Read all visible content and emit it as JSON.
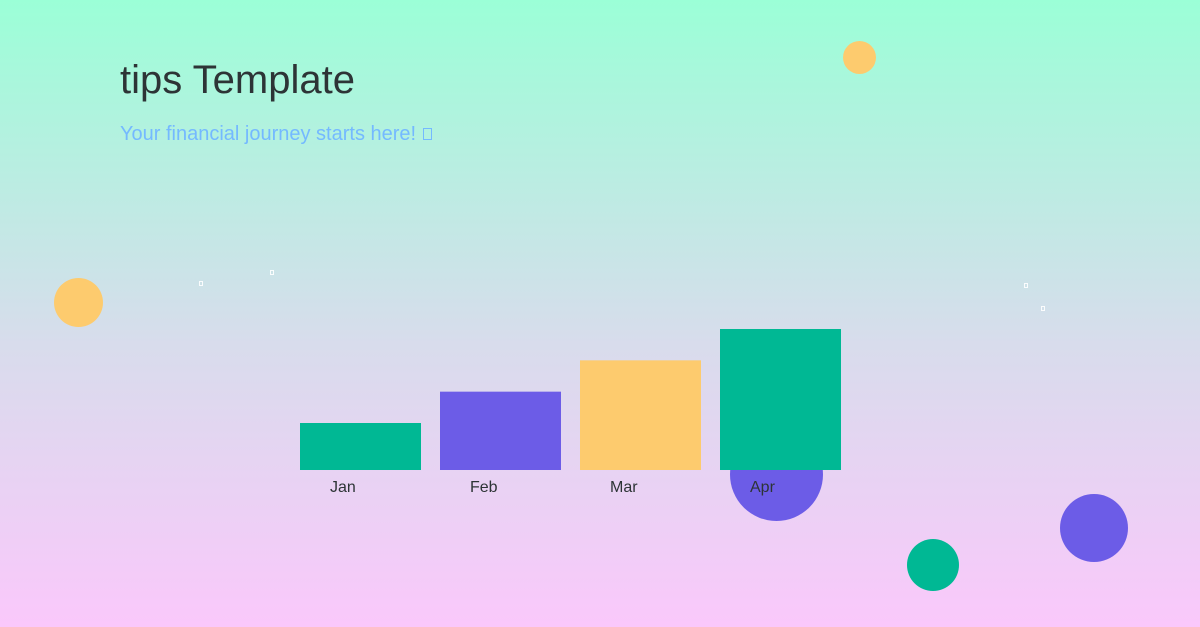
{
  "header": {
    "title": "tips Template",
    "subtitle": "Your financial journey starts here!"
  },
  "palette": {
    "teal": "#00b894",
    "purple": "#6c5ce7",
    "yellow": "#fdcb6e",
    "title_color": "#2d3436",
    "subtitle_color": "#74b9ff",
    "gradient_top": "#9bffd7",
    "gradient_bottom": "#fac8fb"
  },
  "decorations": {
    "bubble_colors": [
      "#fdcb6e",
      "#fdcb6e",
      "#6c5ce7",
      "#6c5ce7",
      "#00b894"
    ],
    "subtitle_icon": "square-glyph-icon"
  },
  "chart_data": {
    "type": "bar",
    "categories": [
      "Jan",
      "Feb",
      "Mar",
      "Apr"
    ],
    "values": [
      30,
      50,
      70,
      90
    ],
    "colors": [
      "#00b894",
      "#6c5ce7",
      "#fdcb6e",
      "#00b894"
    ],
    "ylim": [
      0,
      90
    ],
    "grid": false,
    "legend": "none"
  }
}
